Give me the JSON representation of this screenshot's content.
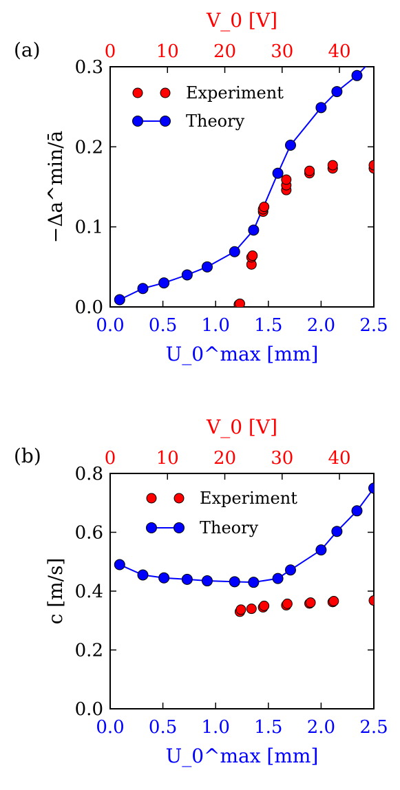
{
  "colors": {
    "experiment_fill": "#ff0000",
    "theory_fill": "#0000ff",
    "theory_line": "#0000ff",
    "bottom_axis_text": "#0000ff",
    "top_axis_text": "#ff0000",
    "frame": "#000000"
  },
  "chart_data": [
    {
      "type": "scatter",
      "panel_label": "(a)",
      "ylabel": "−Δa^min/ā",
      "xlabel": "U_0^max [mm]",
      "top_xlabel": "V_0 [V]",
      "xlim": [
        0,
        2.5
      ],
      "ylim": [
        0,
        0.3
      ],
      "xticks": [
        "0.0",
        "0.5",
        "1.0",
        "1.5",
        "2.0",
        "2.5"
      ],
      "yticks": [
        "0.0",
        "0.1",
        "0.2",
        "0.3"
      ],
      "top_xlim": [
        0,
        46
      ],
      "top_xticks": [
        "0",
        "10",
        "20",
        "30",
        "40"
      ],
      "legend_position": "top-left",
      "series": [
        {
          "name": "Experiment",
          "style": "markers",
          "points": [
            [
              1.22,
              0.003
            ],
            [
              1.23,
              0.004
            ],
            [
              1.34,
              0.053
            ],
            [
              1.34,
              0.062
            ],
            [
              1.35,
              0.064
            ],
            [
              1.45,
              0.119
            ],
            [
              1.45,
              0.122
            ],
            [
              1.46,
              0.125
            ],
            [
              1.67,
              0.146
            ],
            [
              1.67,
              0.152
            ],
            [
              1.67,
              0.159
            ],
            [
              1.89,
              0.167
            ],
            [
              1.89,
              0.17
            ],
            [
              2.11,
              0.173
            ],
            [
              2.11,
              0.177
            ],
            [
              2.5,
              0.173
            ],
            [
              2.5,
              0.177
            ]
          ]
        },
        {
          "name": "Theory",
          "style": "line+markers",
          "points": [
            [
              0.09,
              0.009
            ],
            [
              0.31,
              0.023
            ],
            [
              0.51,
              0.03
            ],
            [
              0.73,
              0.04
            ],
            [
              0.92,
              0.05
            ],
            [
              1.18,
              0.069
            ],
            [
              1.36,
              0.096
            ],
            [
              1.59,
              0.167
            ],
            [
              1.71,
              0.202
            ],
            [
              2.0,
              0.249
            ],
            [
              2.15,
              0.269
            ],
            [
              2.34,
              0.289
            ],
            [
              2.55,
              0.318
            ]
          ]
        }
      ]
    },
    {
      "type": "scatter",
      "panel_label": "(b)",
      "ylabel": "c [m/s]",
      "xlabel": "U_0^max [mm]",
      "top_xlabel": "V_0 [V]",
      "xlim": [
        0,
        2.5
      ],
      "ylim": [
        0,
        0.8
      ],
      "xticks": [
        "0.0",
        "0.5",
        "1.0",
        "1.5",
        "2.0",
        "2.5"
      ],
      "yticks": [
        "0.0",
        "0.2",
        "0.4",
        "0.6",
        "0.8"
      ],
      "top_xlim": [
        0,
        46
      ],
      "top_xticks": [
        "0",
        "10",
        "20",
        "30",
        "40"
      ],
      "legend_position": "top-center",
      "series": [
        {
          "name": "Experiment",
          "style": "markers",
          "points": [
            [
              1.23,
              0.33
            ],
            [
              1.24,
              0.337
            ],
            [
              1.34,
              0.34
            ],
            [
              1.45,
              0.345
            ],
            [
              1.46,
              0.35
            ],
            [
              1.67,
              0.352
            ],
            [
              1.68,
              0.357
            ],
            [
              1.89,
              0.358
            ],
            [
              1.9,
              0.361
            ],
            [
              2.11,
              0.363
            ],
            [
              2.12,
              0.366
            ],
            [
              2.5,
              0.368
            ]
          ]
        },
        {
          "name": "Theory",
          "style": "line+markers",
          "points": [
            [
              0.09,
              0.49
            ],
            [
              0.31,
              0.455
            ],
            [
              0.51,
              0.445
            ],
            [
              0.73,
              0.44
            ],
            [
              0.92,
              0.435
            ],
            [
              1.18,
              0.432
            ],
            [
              1.36,
              0.43
            ],
            [
              1.59,
              0.443
            ],
            [
              1.71,
              0.472
            ],
            [
              2.0,
              0.54
            ],
            [
              2.15,
              0.603
            ],
            [
              2.34,
              0.673
            ],
            [
              2.5,
              0.75
            ]
          ]
        }
      ]
    }
  ]
}
